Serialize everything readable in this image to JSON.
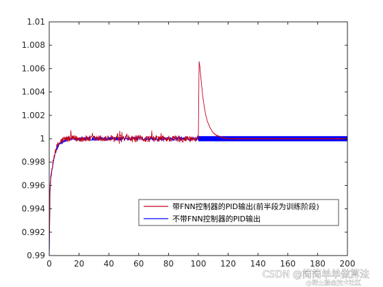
{
  "chart_data": {
    "type": "line",
    "title": "",
    "xlabel": "",
    "ylabel": "",
    "xlim": [
      0,
      200
    ],
    "ylim": [
      0.99,
      1.01
    ],
    "grid": false,
    "legend_position": "bottom-right",
    "x_ticks": [
      "0",
      "20",
      "40",
      "60",
      "80",
      "100",
      "120",
      "140",
      "160",
      "180",
      "200"
    ],
    "y_ticks": [
      "0.99",
      "0.992",
      "0.994",
      "0.996",
      "0.998",
      "1",
      "1.002",
      "1.004",
      "1.006",
      "1.008",
      "1.01"
    ],
    "series": [
      {
        "name": "带FNN控制器的PID输出(前半段为训练阶段)",
        "color": "#c0001a",
        "profile": {
          "x": [
            0,
            0.5,
            1,
            2,
            3,
            4,
            6,
            8,
            10,
            14,
            20,
            30,
            99.9,
            100,
            100.5,
            101,
            102,
            103,
            104,
            105,
            106,
            108,
            110,
            112,
            114,
            116,
            118,
            120,
            200
          ],
          "y": [
            0.99,
            0.9955,
            0.9968,
            0.9975,
            0.9983,
            0.999,
            0.9995,
            0.9998,
            0.99995,
            1.0,
            1.0,
            1.0,
            1.0,
            1.0,
            1.0066,
            1.0062,
            1.0048,
            1.0036,
            1.0027,
            1.002,
            1.0015,
            1.0009,
            1.0005,
            1.0003,
            1.0002,
            1.0001,
            1.00005,
            1.0,
            1.0
          ]
        },
        "noise_amplitude": {
          "0-100": 0.0003,
          "100-200": 2e-05
        }
      },
      {
        "name": "不带FNN控制器的PID输出",
        "color": "#0000ff",
        "profile": {
          "x": [
            0,
            0.5,
            1,
            2,
            3,
            4,
            6,
            8,
            10,
            14,
            20,
            200
          ],
          "y": [
            0.99,
            0.9955,
            0.9966,
            0.9974,
            0.9982,
            0.9988,
            0.9994,
            0.9997,
            0.99985,
            1.0,
            1.0,
            1.0
          ]
        },
        "noise_amplitude": {
          "0-100": 0.00015,
          "100-200": 0.00022
        }
      }
    ]
  },
  "watermark": "CSDN @简简单单做算法",
  "watermark_sub": "@稀土掘金技术社区"
}
